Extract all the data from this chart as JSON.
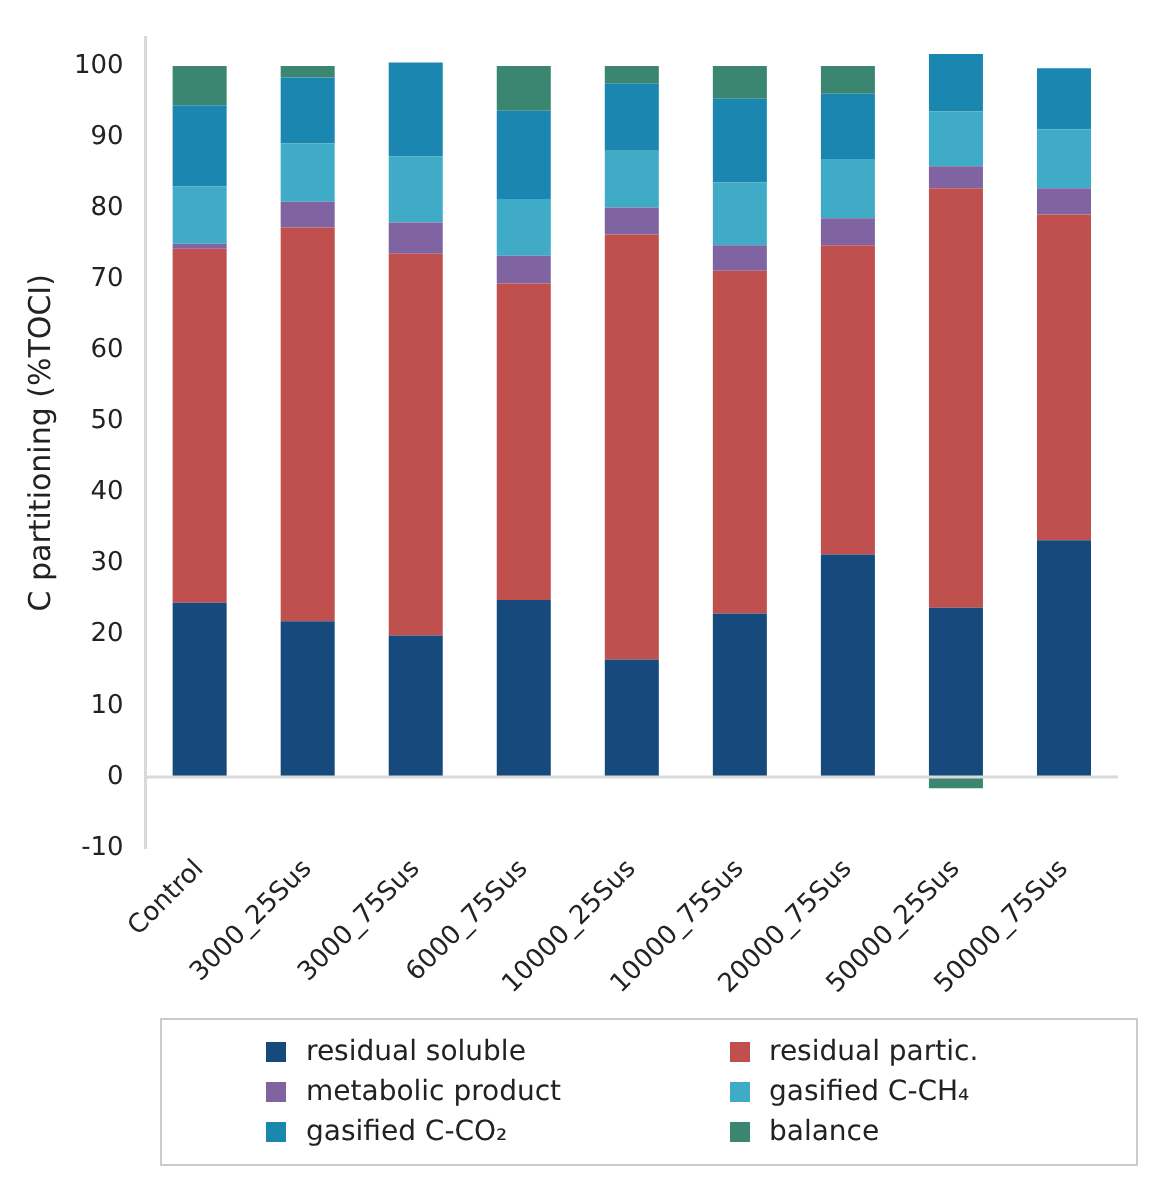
{
  "chart_data": {
    "type": "bar",
    "stacked": true,
    "ylabel": "C partitioning (%TOCI)",
    "categories": [
      "Control",
      "3000_25Sus",
      "3000_75Sus",
      "6000_75Sus",
      "10000_25Sus",
      "10000_75Sus",
      "20000_75Sus",
      "50000_25Sus",
      "50000_75Sus"
    ],
    "series": [
      {
        "name": "residual soluble",
        "color": "#174a7c",
        "values": [
          24.5,
          21.9,
          19.9,
          24.9,
          16.5,
          23.0,
          31.3,
          23.8,
          33.3
        ]
      },
      {
        "name": "residual partic.",
        "color": "#c0504d",
        "values": [
          49.8,
          55.4,
          53.7,
          44.5,
          59.8,
          48.2,
          43.5,
          59.0,
          45.8
        ]
      },
      {
        "name": "metabolic product",
        "color": "#8064a2",
        "values": [
          0.7,
          3.6,
          4.4,
          3.9,
          3.8,
          3.6,
          3.8,
          3.1,
          3.7
        ]
      },
      {
        "name": "gasified C-CH₄",
        "color": "#3fabc6",
        "values": [
          8.1,
          8.2,
          9.3,
          8.0,
          8.0,
          8.8,
          8.2,
          7.7,
          8.3
        ]
      },
      {
        "name": "gasified C-CO₂",
        "color": "#1b87b0",
        "values": [
          11.4,
          9.3,
          13.2,
          12.4,
          9.4,
          11.8,
          9.3,
          8.1,
          8.6
        ]
      },
      {
        "name": "balance",
        "color": "#3b8670",
        "values": [
          5.5,
          1.6,
          0,
          6.3,
          2.5,
          4.6,
          3.9,
          -1.6,
          0
        ]
      }
    ],
    "ylim": [
      -10,
      104
    ],
    "yticks": [
      -10,
      0,
      10,
      20,
      30,
      40,
      50,
      60,
      70,
      80,
      90,
      100
    ],
    "ref_lines": [
      {
        "axis": "y",
        "value": 0,
        "color": "#d9d9d9"
      }
    ],
    "grid": false,
    "legend": "bottom"
  }
}
